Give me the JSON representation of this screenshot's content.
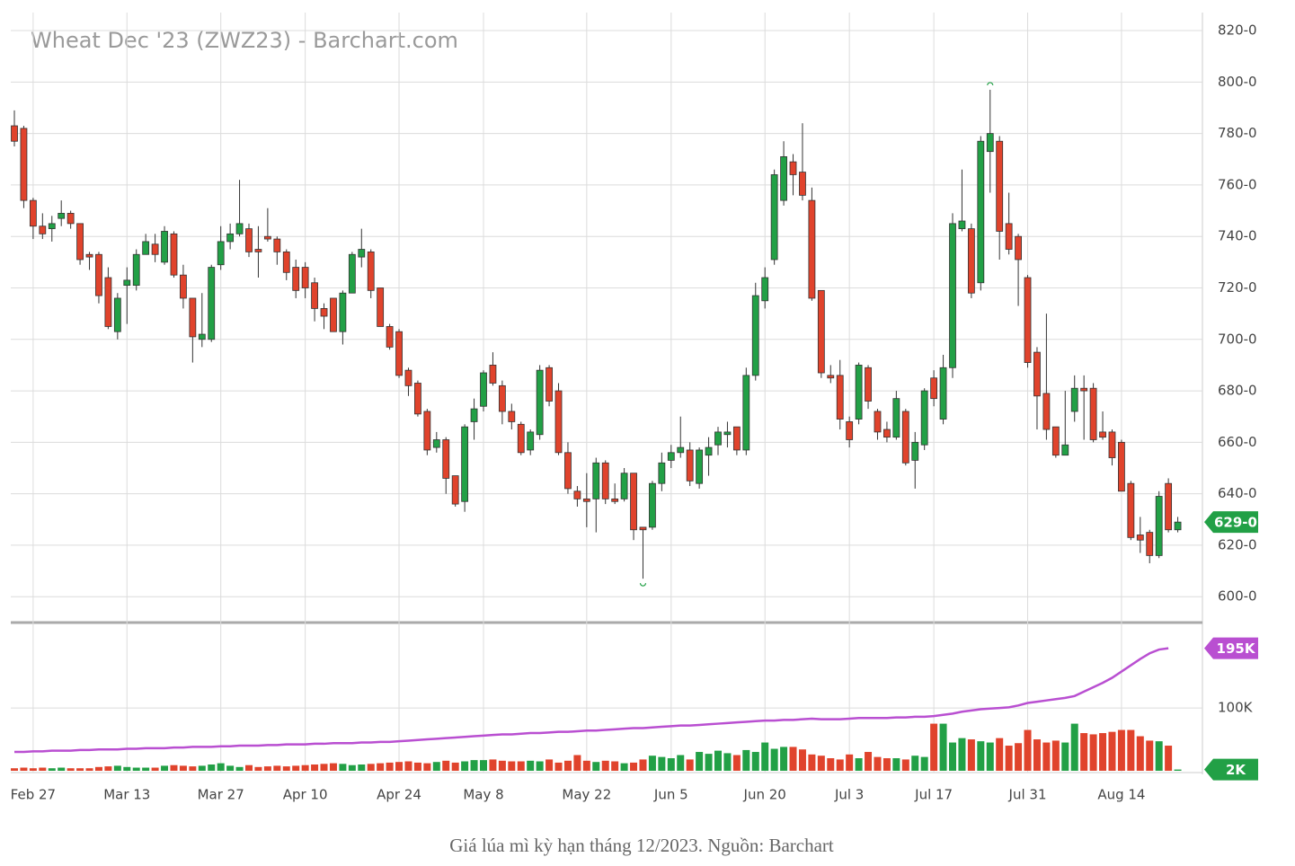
{
  "chart_data": {
    "type": "candlestick",
    "title": "Wheat Dec '23 (ZWZ23) - Barchart.com",
    "caption": "Giá lúa mì kỳ hạn tháng 12/2023. Nguồn: Barchart",
    "categories": [
      null,
      null,
      "Feb 27",
      null,
      null,
      null,
      null,
      null,
      null,
      null,
      null,
      null,
      "Mar 13",
      null,
      null,
      null,
      null,
      null,
      null,
      null,
      null,
      null,
      "Mar 27",
      null,
      null,
      null,
      null,
      null,
      null,
      null,
      null,
      "Apr 10",
      null,
      null,
      null,
      null,
      null,
      null,
      null,
      null,
      null,
      "Apr 24",
      null,
      null,
      null,
      null,
      null,
      null,
      null,
      null,
      "May 8",
      null,
      null,
      null,
      null,
      null,
      null,
      null,
      null,
      null,
      null,
      "May 22",
      null,
      null,
      null,
      null,
      null,
      null,
      null,
      null,
      "Jun 5",
      null,
      null,
      null,
      null,
      null,
      null,
      null,
      null,
      null,
      "Jun 20",
      null,
      null,
      null,
      null,
      null,
      null,
      null,
      null,
      "Jul 3",
      null,
      null,
      null,
      null,
      null,
      null,
      null,
      null,
      "Jul 17",
      null,
      null,
      null,
      null,
      null,
      null,
      null,
      null,
      null,
      "Jul 31",
      null,
      null,
      null,
      null,
      null,
      null,
      null,
      null,
      null,
      "Aug 14",
      null,
      null,
      null,
      null,
      null,
      null
    ],
    "open": [
      783,
      782,
      754,
      744,
      743,
      747,
      749,
      745,
      733,
      733,
      724,
      703,
      721,
      721,
      733,
      737,
      730,
      741,
      725,
      716,
      700,
      700,
      729,
      738,
      741,
      743,
      735,
      740,
      739,
      734,
      728,
      728,
      722,
      712,
      716,
      703,
      718,
      732,
      734,
      720,
      705,
      703,
      688,
      683,
      672,
      658,
      661,
      647,
      637,
      668,
      674,
      690,
      682,
      672,
      667,
      657,
      663,
      689,
      680,
      656,
      641,
      638,
      638,
      652,
      638,
      638,
      648,
      627,
      627,
      644,
      653,
      656,
      657,
      644,
      655,
      659,
      663,
      666,
      657,
      686,
      715,
      731,
      754,
      769,
      765,
      754,
      719,
      686,
      686,
      668,
      669,
      689,
      672,
      665,
      662,
      672,
      653,
      659,
      685,
      669,
      689,
      743,
      743,
      722,
      773,
      777,
      745,
      740,
      724,
      695,
      679,
      666,
      655,
      672,
      681,
      681,
      664,
      664,
      660,
      644,
      624,
      625,
      616,
      644,
      626
    ],
    "high": [
      789,
      783,
      755,
      749,
      748,
      754,
      750,
      745,
      734,
      734,
      728,
      718,
      728,
      735,
      741,
      741,
      744,
      742,
      729,
      716,
      718,
      729,
      744,
      745,
      762,
      745,
      744,
      751,
      740,
      735,
      731,
      730,
      724,
      714,
      716,
      719,
      734,
      743,
      735,
      720,
      706,
      704,
      689,
      684,
      673,
      664,
      662,
      647,
      667,
      677,
      688,
      695,
      684,
      675,
      668,
      665,
      690,
      690,
      683,
      660,
      643,
      648,
      654,
      653,
      644,
      650,
      648,
      627,
      645,
      656,
      659,
      670,
      660,
      658,
      662,
      666,
      668,
      666,
      689,
      722,
      728,
      766,
      777,
      772,
      784,
      759,
      719,
      690,
      692,
      670,
      691,
      690,
      673,
      668,
      680,
      673,
      664,
      681,
      688,
      694,
      749,
      766,
      745,
      779,
      797,
      779,
      757,
      741,
      725,
      697,
      710,
      666,
      680,
      686,
      686,
      683,
      672,
      665,
      661,
      645,
      631,
      626,
      641,
      646,
      631
    ],
    "low": [
      775,
      751,
      739,
      739,
      738,
      744,
      743,
      729,
      727,
      714,
      704,
      700,
      706,
      719,
      733,
      730,
      729,
      724,
      712,
      691,
      697,
      699,
      727,
      735,
      740,
      732,
      724,
      738,
      729,
      723,
      716,
      716,
      707,
      704,
      703,
      698,
      718,
      728,
      716,
      705,
      696,
      685,
      678,
      670,
      655,
      656,
      640,
      635,
      633,
      661,
      672,
      682,
      667,
      665,
      655,
      655,
      661,
      674,
      655,
      640,
      635,
      627,
      625,
      636,
      636,
      637,
      622,
      607,
      626,
      641,
      650,
      654,
      643,
      642,
      647,
      655,
      658,
      655,
      655,
      684,
      712,
      729,
      752,
      756,
      754,
      715,
      685,
      683,
      665,
      658,
      667,
      673,
      661,
      660,
      661,
      651,
      642,
      657,
      674,
      667,
      685,
      742,
      716,
      719,
      757,
      731,
      733,
      713,
      689,
      665,
      661,
      654,
      655,
      668,
      661,
      660,
      661,
      651,
      641,
      622,
      617,
      613,
      615,
      625,
      625
    ],
    "close": [
      777,
      754,
      744,
      741,
      745,
      749,
      745,
      731,
      732,
      717,
      705,
      716,
      723,
      733,
      738,
      733,
      742,
      725,
      716,
      701,
      702,
      728,
      738,
      741,
      745,
      734,
      734,
      739,
      734,
      726,
      719,
      720,
      712,
      709,
      703,
      718,
      733,
      735,
      719,
      705,
      697,
      686,
      682,
      671,
      657,
      661,
      646,
      636,
      666,
      673,
      687,
      683,
      672,
      668,
      656,
      664,
      688,
      676,
      656,
      642,
      638,
      637,
      652,
      638,
      637,
      648,
      626,
      626,
      644,
      652,
      656,
      658,
      645,
      657,
      658,
      664,
      664,
      657,
      686,
      717,
      724,
      764,
      771,
      764,
      756,
      716,
      687,
      685,
      669,
      661,
      690,
      676,
      664,
      662,
      677,
      652,
      660,
      680,
      677,
      689,
      745,
      746,
      718,
      777,
      780,
      742,
      735,
      731,
      691,
      678,
      665,
      655,
      659,
      681,
      680,
      661,
      662,
      654,
      641,
      623,
      622,
      616,
      639,
      626,
      629
    ],
    "volume": [
      4,
      5,
      4,
      5,
      4,
      5,
      4,
      4,
      4,
      6,
      7,
      8,
      6,
      5,
      5,
      5,
      8,
      9,
      8,
      7,
      8,
      10,
      12,
      8,
      6,
      9,
      6,
      7,
      8,
      7,
      8,
      9,
      10,
      11,
      12,
      11,
      9,
      10,
      11,
      12,
      13,
      14,
      15,
      13,
      12,
      14,
      16,
      13,
      15,
      17,
      17,
      18,
      16,
      15,
      15,
      16,
      15,
      18,
      13,
      16,
      25,
      16,
      14,
      16,
      15,
      12,
      13,
      18,
      24,
      22,
      20,
      25,
      18,
      30,
      27,
      32,
      28,
      25,
      33,
      30,
      45,
      35,
      38,
      38,
      34,
      26,
      24,
      20,
      18,
      26,
      20,
      30,
      22,
      20,
      20,
      18,
      24,
      22,
      75,
      75,
      45,
      52,
      50,
      47,
      45,
      52,
      40,
      44,
      65,
      50,
      45,
      48,
      45,
      75,
      60,
      58,
      60,
      62,
      65,
      65,
      55,
      48,
      47,
      40,
      2
    ],
    "open_interest": [
      30,
      30,
      31,
      31,
      32,
      32,
      32,
      33,
      33,
      34,
      34,
      34,
      35,
      35,
      36,
      36,
      36,
      37,
      37,
      38,
      38,
      38,
      39,
      39,
      40,
      40,
      40,
      41,
      41,
      42,
      42,
      42,
      43,
      43,
      44,
      44,
      44,
      45,
      45,
      46,
      46,
      47,
      48,
      49,
      50,
      51,
      52,
      53,
      54,
      55,
      56,
      57,
      58,
      58,
      59,
      60,
      60,
      61,
      62,
      62,
      63,
      64,
      64,
      65,
      66,
      67,
      68,
      68,
      69,
      70,
      71,
      72,
      72,
      73,
      74,
      75,
      76,
      77,
      78,
      79,
      80,
      80,
      81,
      81,
      82,
      83,
      82,
      82,
      82,
      83,
      84,
      84,
      84,
      84,
      85,
      85,
      86,
      86,
      87,
      89,
      91,
      94,
      96,
      98,
      99,
      100,
      101,
      104,
      108,
      110,
      112,
      114,
      116,
      119,
      126,
      133,
      140,
      148,
      158,
      168,
      178,
      187,
      193,
      195,
      null
    ],
    "up_color": "#22a046",
    "down_color": "#e0432c",
    "oi_color": "#b94fd1",
    "ylim": [
      591,
      827
    ],
    "yticks": [
      {
        "value": 600,
        "label": "600-0"
      },
      {
        "value": 620,
        "label": "620-0"
      },
      {
        "value": 640,
        "label": "640-0"
      },
      {
        "value": 660,
        "label": "660-0"
      },
      {
        "value": 680,
        "label": "680-0"
      },
      {
        "value": 700,
        "label": "700-0"
      },
      {
        "value": 720,
        "label": "720-0"
      },
      {
        "value": 740,
        "label": "740-0"
      },
      {
        "value": 760,
        "label": "760-0"
      },
      {
        "value": 780,
        "label": "780-0"
      },
      {
        "value": 800,
        "label": "800-0"
      },
      {
        "value": 820,
        "label": "820-0"
      }
    ],
    "y2lim": [
      0,
      236
    ],
    "y2ticks": [
      {
        "value": 100,
        "label": "100K"
      }
    ],
    "last_price": {
      "value": 629,
      "label": "629-0"
    },
    "last_open_interest": {
      "value": 195,
      "label": "195K"
    },
    "last_volume": {
      "value": 2,
      "label": "2K"
    },
    "grid": true
  }
}
